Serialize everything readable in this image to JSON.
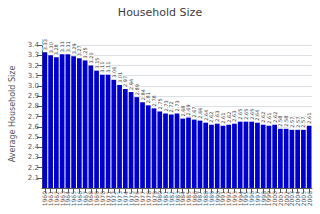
{
  "chart_data": {
    "type": "bar",
    "title": "Household Size",
    "ylabel": "Average Household Size",
    "categories": [
      "1960",
      "1961",
      "1962",
      "1963",
      "1964",
      "1965",
      "1966",
      "1967",
      "1968",
      "1969",
      "1970",
      "1971",
      "1972",
      "1973",
      "1974",
      "1975",
      "1976",
      "1977",
      "1978",
      "1979",
      "1980",
      "1981",
      "1982",
      "1983",
      "1984",
      "1985",
      "1986",
      "1987",
      "1988",
      "1989",
      "1990",
      "1991",
      "1992",
      "1993",
      "1994",
      "1995",
      "1996",
      "1997",
      "1998",
      "1999",
      "2000",
      "2001",
      "2002",
      "2003",
      "2004",
      "2005",
      "2006"
    ],
    "values": [
      3.33,
      3.3,
      3.28,
      3.31,
      3.31,
      3.29,
      3.27,
      3.25,
      3.2,
      3.15,
      3.11,
      3.11,
      3.06,
      3.01,
      2.97,
      2.94,
      2.89,
      2.84,
      2.81,
      2.78,
      2.75,
      2.73,
      2.72,
      2.73,
      2.68,
      2.69,
      2.67,
      2.66,
      2.64,
      2.62,
      2.63,
      2.61,
      2.62,
      2.63,
      2.65,
      2.65,
      2.65,
      2.64,
      2.62,
      2.61,
      2.62,
      2.58,
      2.58,
      2.57,
      2.57,
      2.57,
      2.61
    ],
    "value_labels": [
      "3.33",
      "3.30",
      "3.28",
      "3.31",
      "3.31",
      "3.29",
      "3.27",
      "3.25",
      "3.20",
      "3.15",
      "3.11",
      "3.11",
      "3.06",
      "3.01",
      "2.97",
      "2.94",
      "2.89",
      "2.84",
      "2.81",
      "2.78",
      "2.75",
      "2.73",
      "2.72",
      "2.73",
      "2.68",
      "2.69",
      "2.67",
      "2.66",
      "2.64",
      "2.62",
      "2.63",
      "2.61",
      "2.62",
      "2.63",
      "2.65",
      "2.65",
      "2.65",
      "2.64",
      "2.62",
      "2.61",
      "2.62",
      "2.58",
      "2.58",
      "2.57",
      "2.57",
      "2.57",
      "2.61"
    ],
    "color": "#0000CC",
    "ylim": [
      2.0,
      3.45
    ],
    "yticks": [
      2.1,
      2.2,
      2.3,
      2.4,
      2.5,
      2.6,
      2.7,
      2.8,
      2.9,
      {
        "value": 3.0,
        "label": "3.0"
      },
      3.1,
      3.2,
      3.3,
      3.4
    ],
    "grid": true,
    "data_labels": true
  }
}
